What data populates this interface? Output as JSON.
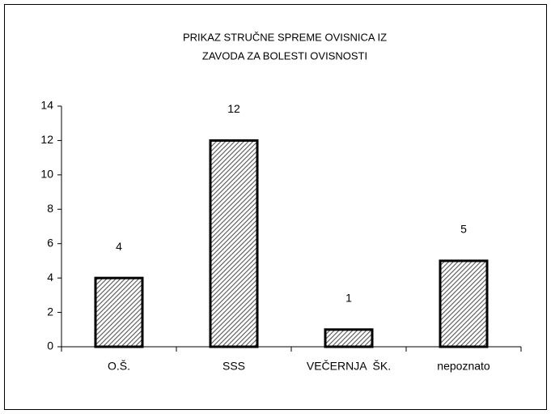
{
  "chart_data": {
    "type": "bar",
    "title": [
      "PRIKAZ STRUČNE SPREME OVISNICA IZ",
      "ZAVODA ZA BOLESTI OVISNOSTI"
    ],
    "categories": [
      "O.Š.",
      "SSS",
      "VEČERNJA  ŠK.",
      "nepoznato"
    ],
    "values": [
      4,
      12,
      1,
      5
    ],
    "color": "#a0a0a0",
    "ylim": [
      0,
      14
    ],
    "yticks": [
      0,
      2,
      4,
      6,
      8,
      10,
      12,
      14
    ],
    "grid": false
  }
}
